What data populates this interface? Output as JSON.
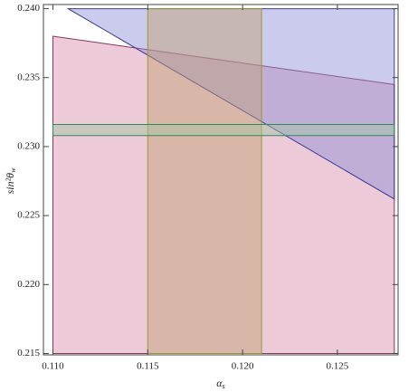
{
  "chart_data": {
    "type": "region",
    "x_label": "α",
    "x_label_sub": "s",
    "y_label": "sin²θ",
    "y_label_sub": "w",
    "xlim": [
      0.1095,
      0.1282
    ],
    "ylim": [
      0.2149,
      0.2403
    ],
    "xticks": [
      {
        "value": 0.11,
        "label": "0.110"
      },
      0.115,
      {
        "value": 0.12,
        "label": "0.120"
      },
      0.125
    ],
    "yticks": [
      0.215,
      {
        "value": 0.22,
        "label": "0.220"
      },
      0.225,
      {
        "value": 0.23,
        "label": "0.230"
      },
      0.235,
      {
        "value": 0.24,
        "label": "0.240"
      }
    ],
    "series": [
      {
        "color": "#d48aa8",
        "stroke": "#8e3560",
        "x": [
          0.11,
          0.128,
          0.128,
          0.11
        ],
        "values": [
          0.238,
          0.2345,
          0.215,
          0.215
        ]
      },
      {
        "color": "#8c8cd8",
        "stroke": "#3c3c96",
        "x": [
          0.1108,
          0.128,
          0.128
        ],
        "values": [
          0.24,
          0.24,
          0.2262
        ]
      },
      {
        "color": "#c0a070",
        "stroke": "#9a9a30",
        "x": [
          0.115,
          0.121,
          0.121,
          0.115
        ],
        "values": [
          0.24,
          0.24,
          0.215,
          0.215
        ]
      },
      {
        "color": "#9fc59f",
        "stroke": "#2e8b57",
        "x": [
          0.11,
          0.128,
          0.128,
          0.11
        ],
        "values": [
          0.2316,
          0.2316,
          0.2308,
          0.2308
        ]
      }
    ]
  }
}
